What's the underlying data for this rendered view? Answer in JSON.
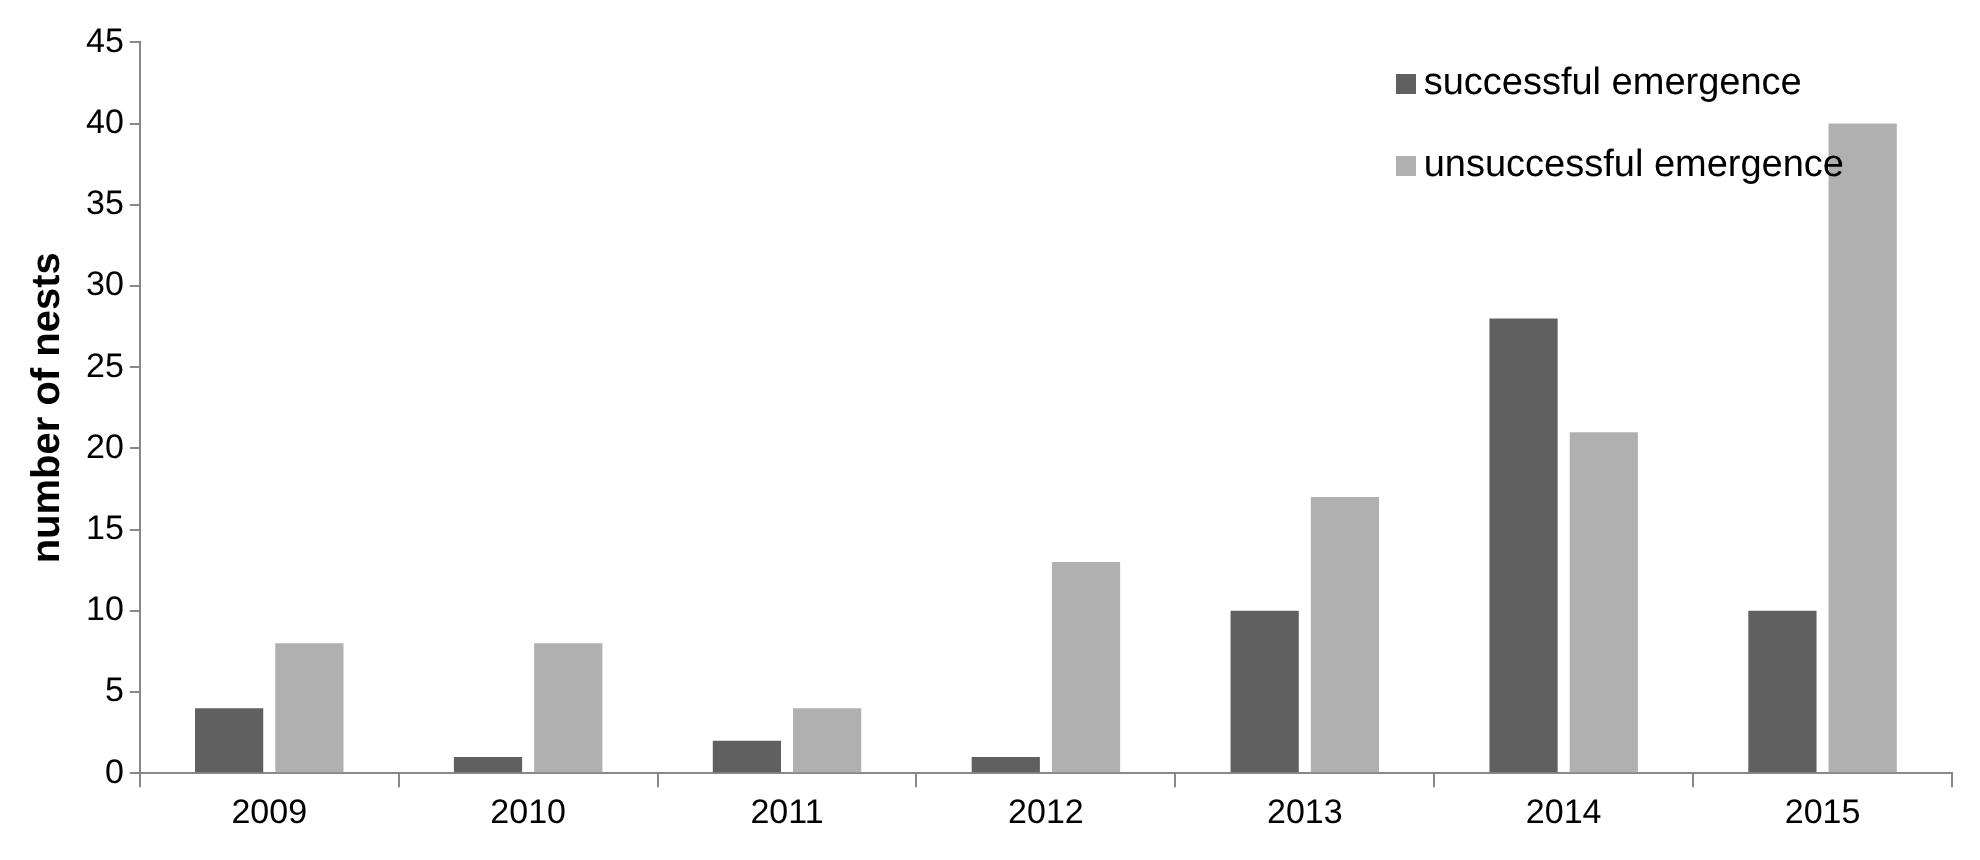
{
  "chart_data": {
    "type": "bar",
    "ylabel": "number of nests",
    "categories": [
      "2009",
      "2010",
      "2011",
      "2012",
      "2013",
      "2014",
      "2015"
    ],
    "series": [
      {
        "name": "successful emergence",
        "color": "#606060",
        "values": [
          4,
          1,
          2,
          1,
          10,
          28,
          10
        ]
      },
      {
        "name": "unsuccessful emergence",
        "color": "#b0b0b0",
        "values": [
          8,
          8,
          4,
          13,
          17,
          21,
          40
        ]
      }
    ],
    "ylim": [
      0,
      45
    ],
    "yticks": [
      0,
      5,
      10,
      15,
      20,
      25,
      30,
      35,
      40,
      45
    ],
    "grid": false,
    "legend": "top right"
  }
}
